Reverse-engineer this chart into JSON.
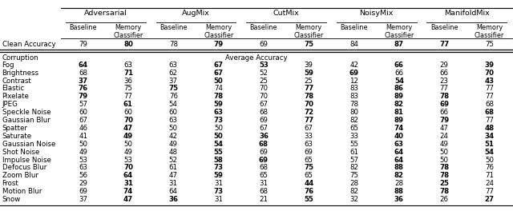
{
  "title_groups": [
    "Adversarial",
    "AugMix",
    "CutMix",
    "NoisyMix",
    "ManifoldMix"
  ],
  "col_headers": [
    "Baseline",
    "Memory\nClassifier"
  ],
  "row_clean": "Clean Accuracy",
  "clean_values": [
    [
      79,
      80
    ],
    [
      78,
      79
    ],
    [
      69,
      75
    ],
    [
      84,
      87
    ],
    [
      77,
      75
    ]
  ],
  "clean_bold": [
    [
      false,
      true
    ],
    [
      false,
      true
    ],
    [
      false,
      true
    ],
    [
      false,
      true
    ],
    [
      true,
      false
    ]
  ],
  "section_label": "Corruption",
  "section_center": "Average Accuracy",
  "corruption_rows": [
    "Fog",
    "Brightness",
    "Contrast",
    "Elastic",
    "Pixelate",
    "JPEG",
    "Speckle Noise",
    "Gaussian Blur",
    "Spatter",
    "Saturate",
    "Gaussian Noise",
    "Shot Noise",
    "Impulse Noise",
    "Defocus Blur",
    "Zoom Blur",
    "Frost",
    "Motion Blur",
    "Snow"
  ],
  "corruption_values": [
    [
      [
        64,
        63
      ],
      [
        63,
        67
      ],
      [
        53,
        39
      ],
      [
        42,
        66
      ],
      [
        29,
        39
      ]
    ],
    [
      [
        68,
        71
      ],
      [
        62,
        67
      ],
      [
        52,
        59
      ],
      [
        69,
        66
      ],
      [
        66,
        70
      ]
    ],
    [
      [
        37,
        36
      ],
      [
        37,
        50
      ],
      [
        25,
        25
      ],
      [
        12,
        54
      ],
      [
        23,
        43
      ]
    ],
    [
      [
        76,
        75
      ],
      [
        75,
        74
      ],
      [
        70,
        77
      ],
      [
        83,
        86
      ],
      [
        77,
        77
      ]
    ],
    [
      [
        79,
        77
      ],
      [
        76,
        78
      ],
      [
        70,
        78
      ],
      [
        83,
        89
      ],
      [
        78,
        77
      ]
    ],
    [
      [
        57,
        61
      ],
      [
        54,
        59
      ],
      [
        67,
        70
      ],
      [
        78,
        82
      ],
      [
        69,
        68
      ]
    ],
    [
      [
        60,
        60
      ],
      [
        60,
        63
      ],
      [
        68,
        72
      ],
      [
        80,
        81
      ],
      [
        66,
        68
      ]
    ],
    [
      [
        67,
        70
      ],
      [
        63,
        73
      ],
      [
        69,
        77
      ],
      [
        82,
        89
      ],
      [
        79,
        77
      ]
    ],
    [
      [
        46,
        47
      ],
      [
        50,
        50
      ],
      [
        67,
        67
      ],
      [
        65,
        74
      ],
      [
        47,
        48
      ]
    ],
    [
      [
        41,
        49
      ],
      [
        42,
        50
      ],
      [
        36,
        33
      ],
      [
        33,
        40
      ],
      [
        24,
        34
      ]
    ],
    [
      [
        50,
        50
      ],
      [
        49,
        54
      ],
      [
        68,
        63
      ],
      [
        55,
        63
      ],
      [
        49,
        51
      ]
    ],
    [
      [
        49,
        49
      ],
      [
        48,
        55
      ],
      [
        69,
        69
      ],
      [
        61,
        64
      ],
      [
        50,
        54
      ]
    ],
    [
      [
        53,
        53
      ],
      [
        52,
        58
      ],
      [
        69,
        65
      ],
      [
        57,
        64
      ],
      [
        50,
        50
      ]
    ],
    [
      [
        63,
        70
      ],
      [
        61,
        73
      ],
      [
        68,
        75
      ],
      [
        82,
        88
      ],
      [
        78,
        76
      ]
    ],
    [
      [
        56,
        64
      ],
      [
        47,
        59
      ],
      [
        65,
        65
      ],
      [
        75,
        82
      ],
      [
        78,
        71
      ]
    ],
    [
      [
        29,
        31
      ],
      [
        31,
        31
      ],
      [
        31,
        44
      ],
      [
        28,
        28
      ],
      [
        25,
        24
      ]
    ],
    [
      [
        69,
        74
      ],
      [
        64,
        73
      ],
      [
        68,
        76
      ],
      [
        82,
        88
      ],
      [
        78,
        77
      ]
    ],
    [
      [
        37,
        47
      ],
      [
        36,
        31
      ],
      [
        21,
        55
      ],
      [
        32,
        36
      ],
      [
        26,
        27
      ]
    ]
  ],
  "corruption_bold": [
    [
      [
        true,
        false
      ],
      [
        false,
        true
      ],
      [
        true,
        false
      ],
      [
        false,
        true
      ],
      [
        false,
        true
      ]
    ],
    [
      [
        false,
        true
      ],
      [
        false,
        true
      ],
      [
        false,
        true
      ],
      [
        true,
        false
      ],
      [
        false,
        true
      ]
    ],
    [
      [
        true,
        false
      ],
      [
        false,
        true
      ],
      [
        false,
        false
      ],
      [
        false,
        true
      ],
      [
        false,
        true
      ]
    ],
    [
      [
        true,
        false
      ],
      [
        true,
        false
      ],
      [
        false,
        true
      ],
      [
        false,
        true
      ],
      [
        false,
        false
      ]
    ],
    [
      [
        true,
        false
      ],
      [
        false,
        true
      ],
      [
        false,
        true
      ],
      [
        false,
        true
      ],
      [
        true,
        false
      ]
    ],
    [
      [
        false,
        true
      ],
      [
        false,
        true
      ],
      [
        false,
        true
      ],
      [
        false,
        true
      ],
      [
        true,
        false
      ]
    ],
    [
      [
        false,
        false
      ],
      [
        false,
        true
      ],
      [
        false,
        true
      ],
      [
        false,
        true
      ],
      [
        false,
        true
      ]
    ],
    [
      [
        false,
        true
      ],
      [
        false,
        true
      ],
      [
        false,
        true
      ],
      [
        false,
        true
      ],
      [
        true,
        false
      ]
    ],
    [
      [
        false,
        true
      ],
      [
        false,
        false
      ],
      [
        false,
        false
      ],
      [
        false,
        true
      ],
      [
        false,
        true
      ]
    ],
    [
      [
        false,
        true
      ],
      [
        false,
        true
      ],
      [
        true,
        false
      ],
      [
        false,
        true
      ],
      [
        false,
        true
      ]
    ],
    [
      [
        false,
        false
      ],
      [
        false,
        true
      ],
      [
        true,
        false
      ],
      [
        false,
        true
      ],
      [
        false,
        true
      ]
    ],
    [
      [
        false,
        false
      ],
      [
        false,
        true
      ],
      [
        false,
        false
      ],
      [
        false,
        true
      ],
      [
        false,
        true
      ]
    ],
    [
      [
        false,
        false
      ],
      [
        false,
        true
      ],
      [
        true,
        false
      ],
      [
        false,
        true
      ],
      [
        false,
        false
      ]
    ],
    [
      [
        false,
        true
      ],
      [
        false,
        true
      ],
      [
        false,
        true
      ],
      [
        false,
        true
      ],
      [
        true,
        false
      ]
    ],
    [
      [
        false,
        true
      ],
      [
        false,
        true
      ],
      [
        false,
        false
      ],
      [
        false,
        true
      ],
      [
        true,
        false
      ]
    ],
    [
      [
        false,
        true
      ],
      [
        false,
        false
      ],
      [
        false,
        true
      ],
      [
        false,
        false
      ],
      [
        true,
        false
      ]
    ],
    [
      [
        false,
        true
      ],
      [
        false,
        true
      ],
      [
        false,
        true
      ],
      [
        false,
        true
      ],
      [
        true,
        false
      ]
    ],
    [
      [
        false,
        true
      ],
      [
        true,
        false
      ],
      [
        false,
        true
      ],
      [
        false,
        true
      ],
      [
        false,
        true
      ]
    ]
  ],
  "bg_color": "#ffffff",
  "text_color": "#000000",
  "font_size": 6.2,
  "header_font_size": 6.8
}
